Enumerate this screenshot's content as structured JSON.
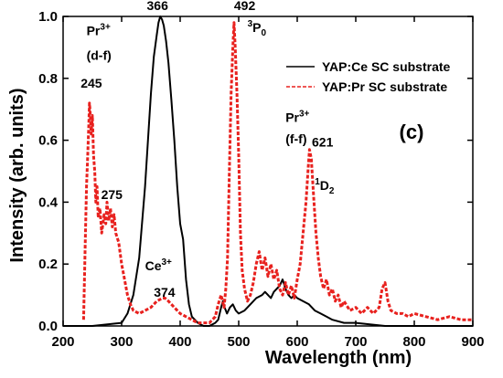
{
  "chart_data": {
    "type": "line",
    "xlabel": "Wavelength (nm)",
    "ylabel": "Intensity (arb. units)",
    "xlim": [
      200,
      900
    ],
    "ylim": [
      0.0,
      1.0
    ],
    "x_ticks": [
      "200",
      "300",
      "400",
      "500",
      "600",
      "700",
      "800",
      "900"
    ],
    "y_ticks": [
      "0.0",
      "0.2",
      "0.4",
      "0.6",
      "0.8",
      "1.0"
    ],
    "panel_label": "(c)",
    "legend_position": "top-right",
    "series": [
      {
        "name": "YAP:Ce SC substrate",
        "color": "#000000",
        "style": "solid",
        "x": [
          200,
          250,
          300,
          310,
          320,
          330,
          340,
          345,
          350,
          355,
          360,
          363,
          366,
          369,
          372,
          376,
          380,
          385,
          390,
          395,
          400,
          405,
          410,
          415,
          420,
          430,
          440,
          450,
          460,
          465,
          470,
          473,
          476,
          480,
          485,
          490,
          495,
          500,
          510,
          520,
          530,
          540,
          545,
          550,
          555,
          560,
          565,
          570,
          575,
          580,
          585,
          590,
          595,
          600,
          610,
          620,
          630,
          640,
          650,
          660,
          680,
          700,
          750,
          800,
          850,
          900
        ],
        "y": [
          0.0,
          0.0,
          0.01,
          0.04,
          0.1,
          0.22,
          0.45,
          0.6,
          0.75,
          0.87,
          0.94,
          0.98,
          1.0,
          0.99,
          0.97,
          0.92,
          0.85,
          0.73,
          0.6,
          0.45,
          0.33,
          0.28,
          0.15,
          0.07,
          0.03,
          0.01,
          0.0,
          0.0,
          0.01,
          0.02,
          0.06,
          0.08,
          0.06,
          0.04,
          0.06,
          0.07,
          0.05,
          0.04,
          0.05,
          0.07,
          0.09,
          0.1,
          0.11,
          0.1,
          0.09,
          0.11,
          0.12,
          0.13,
          0.15,
          0.12,
          0.1,
          0.09,
          0.1,
          0.09,
          0.08,
          0.07,
          0.05,
          0.04,
          0.03,
          0.02,
          0.01,
          0.01,
          0.0,
          0.0,
          0.0,
          0.0
        ]
      },
      {
        "name": "YAP:Pr SC substrate",
        "color": "#e8211e",
        "style": "dashed",
        "x": [
          235,
          238,
          240,
          242,
          244,
          245,
          246,
          248,
          250,
          252,
          254,
          256,
          258,
          260,
          263,
          266,
          270,
          273,
          275,
          278,
          281,
          284,
          287,
          290,
          295,
          300,
          305,
          310,
          315,
          320,
          330,
          340,
          350,
          360,
          370,
          374,
          380,
          390,
          400,
          410,
          420,
          430,
          440,
          450,
          460,
          465,
          470,
          475,
          478,
          481,
          484,
          487,
          490,
          492,
          494,
          497,
          500,
          503,
          506,
          510,
          515,
          520,
          525,
          530,
          535,
          540,
          545,
          550,
          555,
          560,
          565,
          570,
          575,
          580,
          585,
          590,
          595,
          600,
          605,
          610,
          615,
          619,
          621,
          624,
          628,
          632,
          636,
          640,
          645,
          650,
          655,
          660,
          665,
          670,
          675,
          680,
          690,
          700,
          710,
          720,
          730,
          740,
          745,
          750,
          755,
          760,
          770,
          780,
          790,
          800,
          820,
          840,
          860,
          880,
          900
        ],
        "y": [
          0.02,
          0.28,
          0.45,
          0.55,
          0.66,
          0.72,
          0.7,
          0.62,
          0.68,
          0.55,
          0.5,
          0.4,
          0.45,
          0.35,
          0.38,
          0.3,
          0.36,
          0.33,
          0.4,
          0.34,
          0.38,
          0.32,
          0.36,
          0.3,
          0.27,
          0.2,
          0.15,
          0.1,
          0.07,
          0.05,
          0.04,
          0.05,
          0.06,
          0.08,
          0.09,
          0.09,
          0.08,
          0.06,
          0.04,
          0.03,
          0.02,
          0.01,
          0.01,
          0.01,
          0.03,
          0.07,
          0.1,
          0.06,
          0.12,
          0.22,
          0.5,
          0.75,
          0.9,
          0.98,
          0.9,
          0.75,
          0.55,
          0.3,
          0.18,
          0.12,
          0.08,
          0.1,
          0.14,
          0.2,
          0.24,
          0.18,
          0.22,
          0.16,
          0.2,
          0.15,
          0.18,
          0.12,
          0.1,
          0.14,
          0.1,
          0.13,
          0.09,
          0.15,
          0.2,
          0.3,
          0.4,
          0.52,
          0.57,
          0.54,
          0.42,
          0.3,
          0.22,
          0.16,
          0.12,
          0.15,
          0.1,
          0.12,
          0.08,
          0.1,
          0.06,
          0.08,
          0.05,
          0.06,
          0.04,
          0.06,
          0.04,
          0.06,
          0.12,
          0.14,
          0.08,
          0.05,
          0.04,
          0.04,
          0.03,
          0.04,
          0.03,
          0.02,
          0.03,
          0.02,
          0.02
        ]
      }
    ],
    "annotations": [
      {
        "text": "Pr",
        "sup": "3+",
        "x": 240,
        "y": 0.94
      },
      {
        "text": "(d-f)",
        "x": 240,
        "y": 0.86
      },
      {
        "text": "245",
        "x": 230,
        "y": 0.77
      },
      {
        "text": "275",
        "x": 265,
        "y": 0.41
      },
      {
        "text": "366",
        "x": 343,
        "y": 1.02
      },
      {
        "text": "Ce",
        "sup": "3+",
        "x": 340,
        "y": 0.18
      },
      {
        "text": "374",
        "x": 355,
        "y": 0.095
      },
      {
        "text": "492",
        "x": 492,
        "y": 1.02
      },
      {
        "text": "P",
        "pre": "3",
        "sub": "0",
        "x": 515,
        "y": 0.95
      },
      {
        "text": "Pr",
        "sup": "3+",
        "x": 580,
        "y": 0.66
      },
      {
        "text": "(f-f)",
        "x": 580,
        "y": 0.59
      },
      {
        "text": "621",
        "x": 625,
        "y": 0.58
      },
      {
        "text": "D",
        "pre": "1",
        "sub": "2",
        "x": 630,
        "y": 0.44
      }
    ]
  }
}
